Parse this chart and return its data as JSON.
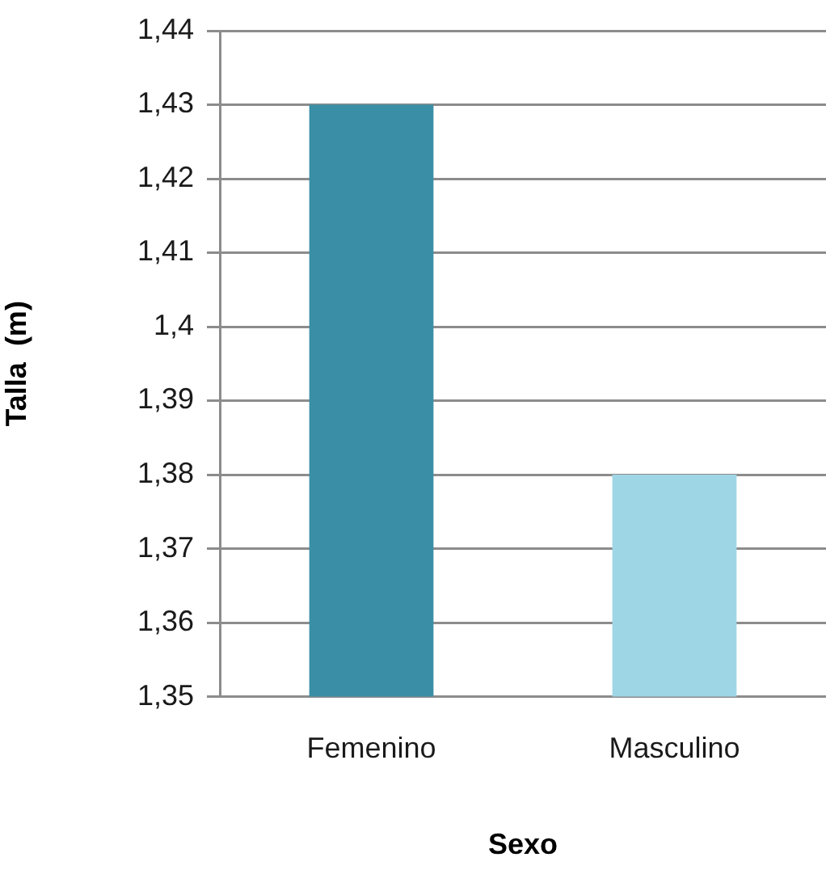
{
  "chart_data": {
    "type": "bar",
    "xlabel": "Sexo",
    "ylabel": "Talla  (m)",
    "categories": [
      "Femenino",
      "Masculino"
    ],
    "values": [
      1.43,
      1.38
    ],
    "colors": [
      "#3a8fa6",
      "#9fd6e6"
    ],
    "ylim": [
      1.35,
      1.44
    ],
    "yticks": [
      {
        "value": 1.35,
        "label": "1,35"
      },
      {
        "value": 1.36,
        "label": "1,36"
      },
      {
        "value": 1.37,
        "label": "1,37"
      },
      {
        "value": 1.38,
        "label": "1,38"
      },
      {
        "value": 1.39,
        "label": "1,39"
      },
      {
        "value": 1.4,
        "label": "1,4"
      },
      {
        "value": 1.41,
        "label": "1,41"
      },
      {
        "value": 1.42,
        "label": "1,42"
      },
      {
        "value": 1.43,
        "label": "1,43"
      },
      {
        "value": 1.44,
        "label": "1,44"
      }
    ],
    "grid": "y"
  }
}
